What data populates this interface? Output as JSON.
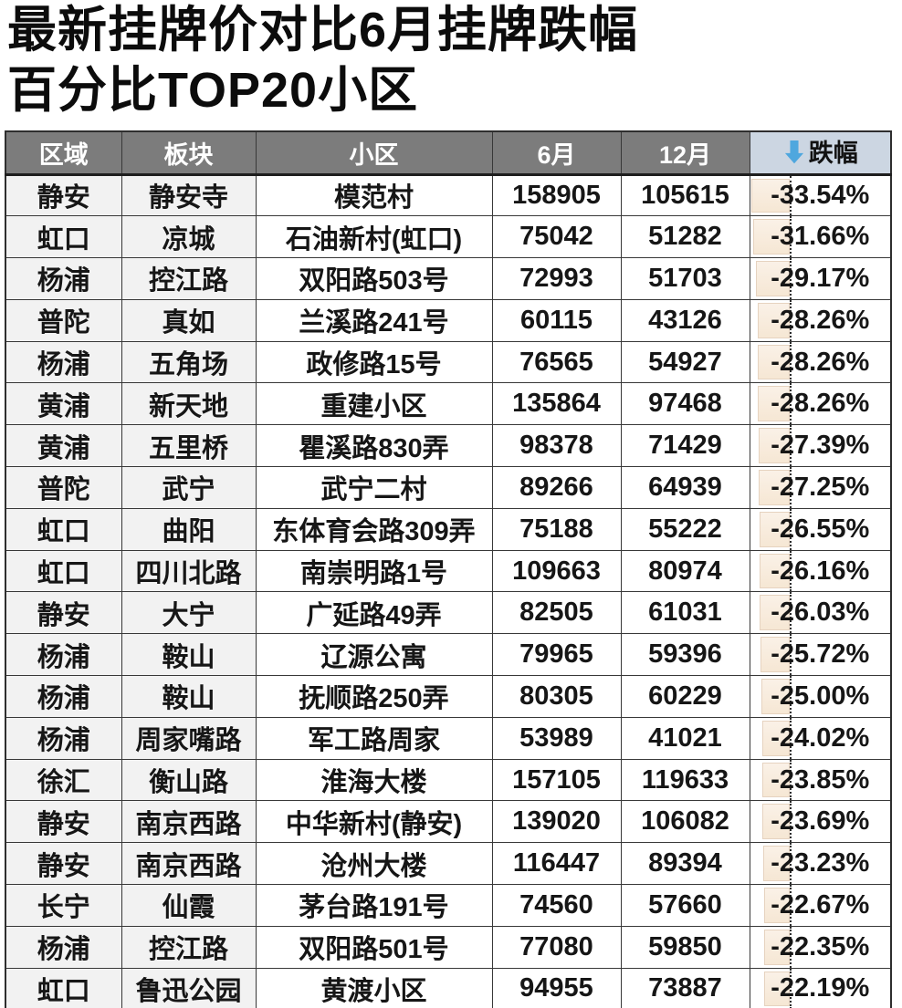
{
  "title": {
    "line1": "最新挂牌价对比6月挂牌跌幅",
    "line2": "百分比TOP20小区"
  },
  "table": {
    "columns": [
      {
        "key": "region",
        "label": "区域"
      },
      {
        "key": "block",
        "label": "板块"
      },
      {
        "key": "community",
        "label": "小区"
      },
      {
        "key": "june",
        "label": "6月"
      },
      {
        "key": "december",
        "label": "12月"
      },
      {
        "key": "drop",
        "label": "跌幅"
      }
    ],
    "sort_icon": "down-arrow",
    "sorted_by": "跌幅"
  },
  "colors": {
    "header_bg": "#7c7c7c",
    "header_text": "#ffffff",
    "drop_header_bg": "#ccd6e2",
    "sort_arrow": "#4fa7de",
    "bar_fill": "#f6e7d4",
    "bar_border": "#e6d3c0",
    "row_shade": "#f2f2f2",
    "grid_border": "#383838",
    "text": "#161616"
  },
  "chart_data": {
    "type": "table",
    "title": "最新挂牌价对比6月挂牌跌幅百分比TOP20小区",
    "columns": [
      "区域",
      "板块",
      "小区",
      "6月",
      "12月",
      "跌幅"
    ],
    "drop_unit": "%",
    "sort": "跌幅 ascending (largest decline first)",
    "bar_axis": "dotted zero axis in 跌幅 column, negative bars extend left",
    "rows": [
      [
        "静安",
        "静安寺",
        "模范村",
        158905,
        105615,
        -33.54
      ],
      [
        "虹口",
        "凉城",
        "石油新村(虹口)",
        75042,
        51282,
        -31.66
      ],
      [
        "杨浦",
        "控江路",
        "双阳路503号",
        72993,
        51703,
        -29.17
      ],
      [
        "普陀",
        "真如",
        "兰溪路241号",
        60115,
        43126,
        -28.26
      ],
      [
        "杨浦",
        "五角场",
        "政修路15号",
        76565,
        54927,
        -28.26
      ],
      [
        "黄浦",
        "新天地",
        "重建小区",
        135864,
        97468,
        -28.26
      ],
      [
        "黄浦",
        "五里桥",
        "瞿溪路830弄",
        98378,
        71429,
        -27.39
      ],
      [
        "普陀",
        "武宁",
        "武宁二村",
        89266,
        64939,
        -27.25
      ],
      [
        "虹口",
        "曲阳",
        "东体育会路309弄",
        75188,
        55222,
        -26.55
      ],
      [
        "虹口",
        "四川北路",
        "南崇明路1号",
        109663,
        80974,
        -26.16
      ],
      [
        "静安",
        "大宁",
        "广延路49弄",
        82505,
        61031,
        -26.03
      ],
      [
        "杨浦",
        "鞍山",
        "辽源公寓",
        79965,
        59396,
        -25.72
      ],
      [
        "杨浦",
        "鞍山",
        "抚顺路250弄",
        80305,
        60229,
        -25.0
      ],
      [
        "杨浦",
        "周家嘴路",
        "军工路周家",
        53989,
        41021,
        -24.02
      ],
      [
        "徐汇",
        "衡山路",
        "淮海大楼",
        157105,
        119633,
        -23.85
      ],
      [
        "静安",
        "南京西路",
        "中华新村(静安)",
        139020,
        106082,
        -23.69
      ],
      [
        "静安",
        "南京西路",
        "沧州大楼",
        116447,
        89394,
        -23.23
      ],
      [
        "长宁",
        "仙霞",
        "茅台路191号",
        74560,
        57660,
        -22.67
      ],
      [
        "杨浦",
        "控江路",
        "双阳路501号",
        77080,
        59850,
        -22.35
      ],
      [
        "虹口",
        "鲁迅公园",
        "黄渡小区",
        94955,
        73887,
        -22.19
      ]
    ]
  }
}
